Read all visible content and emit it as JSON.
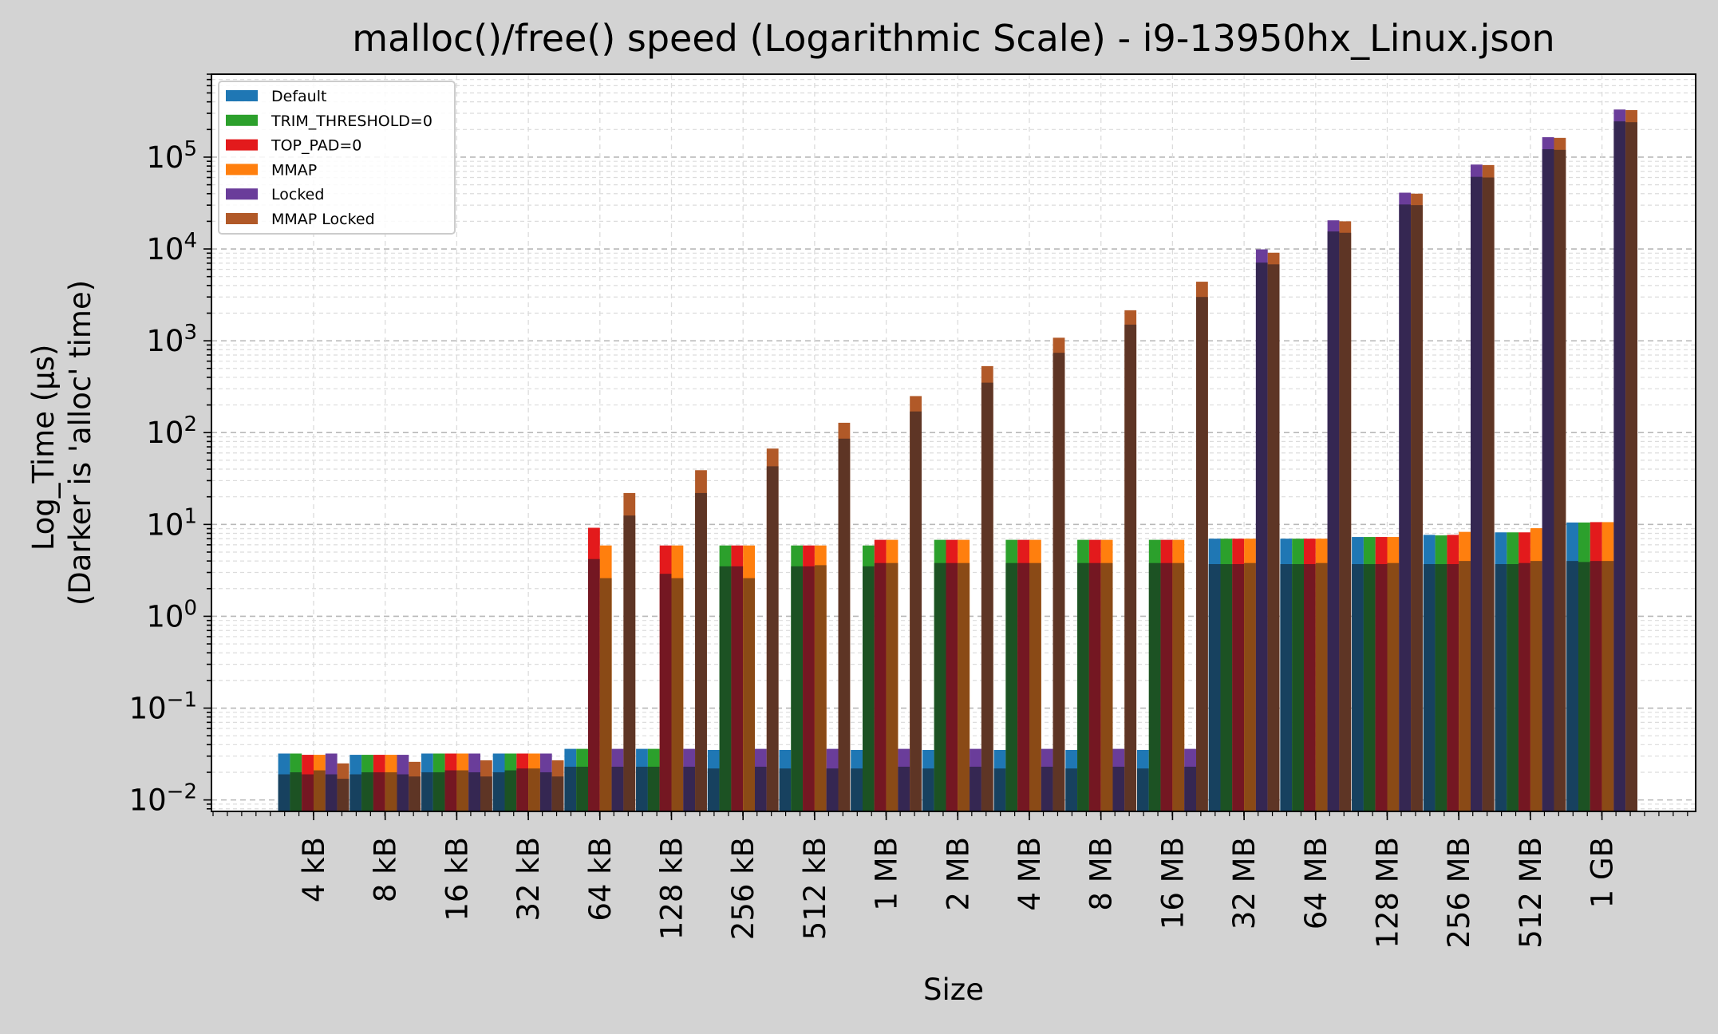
{
  "chart_data": {
    "type": "bar",
    "title": "malloc()/free() speed (Logarithmic Scale) - i9-13950hx_Linux.json",
    "xlabel": "Size",
    "ylabel": [
      "Log_Time (µs)",
      "(Darker is 'alloc' time)"
    ],
    "yscale": "log",
    "ylim": [
      0.0075,
      800000
    ],
    "yticks": [
      {
        "value": 0.01,
        "base": "10",
        "exp": "−2"
      },
      {
        "value": 0.1,
        "base": "10",
        "exp": "−1"
      },
      {
        "value": 1,
        "base": "10",
        "exp": "0"
      },
      {
        "value": 10,
        "base": "10",
        "exp": "1"
      },
      {
        "value": 100,
        "base": "10",
        "exp": "2"
      },
      {
        "value": 1000,
        "base": "10",
        "exp": "3"
      },
      {
        "value": 10000,
        "base": "10",
        "exp": "4"
      },
      {
        "value": 100000,
        "base": "10",
        "exp": "5"
      }
    ],
    "grid": true,
    "legend_position": "top-left",
    "categories": [
      "4 kB",
      "8 kB",
      "16 kB",
      "32 kB",
      "64 kB",
      "128 kB",
      "256 kB",
      "512 kB",
      "1 MB",
      "2 MB",
      "4 MB",
      "8 MB",
      "16 MB",
      "32 MB",
      "64 MB",
      "128 MB",
      "256 MB",
      "512 MB",
      "1 GB"
    ],
    "series": [
      {
        "name": "Default",
        "color": "#1f77b4",
        "dark_color": "#17415f",
        "total": [
          0.032,
          0.031,
          0.032,
          0.032,
          0.036,
          0.036,
          0.035,
          0.035,
          0.035,
          0.035,
          0.035,
          0.035,
          0.035,
          7.0,
          7.0,
          7.3,
          7.7,
          8.2,
          10.5
        ],
        "alloc": [
          0.019,
          0.019,
          0.02,
          0.02,
          0.023,
          0.023,
          0.022,
          0.022,
          0.022,
          0.022,
          0.022,
          0.022,
          0.022,
          3.7,
          3.7,
          3.7,
          3.7,
          3.7,
          4.0
        ]
      },
      {
        "name": "TRIM_THRESHOLD=0",
        "color": "#2ca02c",
        "dark_color": "#1c5223",
        "total": [
          0.032,
          0.031,
          0.032,
          0.032,
          0.036,
          0.036,
          5.9,
          5.9,
          5.9,
          6.8,
          6.8,
          6.8,
          6.8,
          7.0,
          7.0,
          7.3,
          7.6,
          8.2,
          10.5
        ],
        "alloc": [
          0.02,
          0.02,
          0.02,
          0.021,
          0.023,
          0.023,
          3.5,
          3.5,
          3.5,
          3.8,
          3.8,
          3.8,
          3.8,
          3.7,
          3.7,
          3.7,
          3.7,
          3.7,
          3.9
        ]
      },
      {
        "name": "TOP_PAD=0",
        "color": "#e31a1c",
        "dark_color": "#741722",
        "total": [
          0.031,
          0.031,
          0.032,
          0.032,
          9.2,
          5.9,
          5.9,
          5.9,
          6.8,
          6.8,
          6.8,
          6.8,
          6.8,
          7.0,
          7.0,
          7.3,
          7.7,
          8.2,
          10.6
        ],
        "alloc": [
          0.019,
          0.02,
          0.021,
          0.022,
          4.2,
          2.9,
          3.5,
          3.5,
          3.8,
          3.8,
          3.8,
          3.8,
          3.8,
          3.7,
          3.7,
          3.7,
          3.7,
          3.8,
          4.0
        ]
      },
      {
        "name": "MMAP",
        "color": "#ff7f0e",
        "dark_color": "#8a4a16",
        "total": [
          0.031,
          0.031,
          0.032,
          0.032,
          5.9,
          5.9,
          5.9,
          5.9,
          6.8,
          6.8,
          6.8,
          6.8,
          6.8,
          7.0,
          7.0,
          7.3,
          8.3,
          9.1,
          10.6
        ],
        "alloc": [
          0.021,
          0.02,
          0.021,
          0.022,
          2.6,
          2.6,
          2.6,
          3.6,
          3.8,
          3.8,
          3.8,
          3.8,
          3.8,
          3.8,
          3.8,
          3.8,
          4.0,
          4.0,
          4.0
        ]
      },
      {
        "name": "Locked",
        "color": "#6a3d9a",
        "dark_color": "#352752",
        "total": [
          0.032,
          0.031,
          0.032,
          0.032,
          0.036,
          0.036,
          0.036,
          0.036,
          0.036,
          0.036,
          0.036,
          0.036,
          0.036,
          9900,
          20500,
          41000,
          83000,
          165000,
          330000
        ],
        "alloc": [
          0.019,
          0.019,
          0.02,
          0.02,
          0.023,
          0.023,
          0.023,
          0.022,
          0.023,
          0.023,
          0.023,
          0.023,
          0.023,
          7100,
          15500,
          30500,
          61000,
          122000,
          245000
        ]
      },
      {
        "name": "MMAP Locked",
        "color": "#b15928",
        "dark_color": "#5e3525",
        "total": [
          0.025,
          0.026,
          0.027,
          0.027,
          22,
          39,
          67,
          128,
          250,
          530,
          1080,
          2150,
          4400,
          9100,
          20000,
          40000,
          82000,
          162000,
          325000
        ],
        "alloc": [
          0.017,
          0.018,
          0.018,
          0.018,
          12.5,
          22,
          43,
          86,
          170,
          350,
          740,
          1500,
          3000,
          6800,
          15000,
          30000,
          60000,
          120000,
          240000
        ]
      }
    ]
  }
}
